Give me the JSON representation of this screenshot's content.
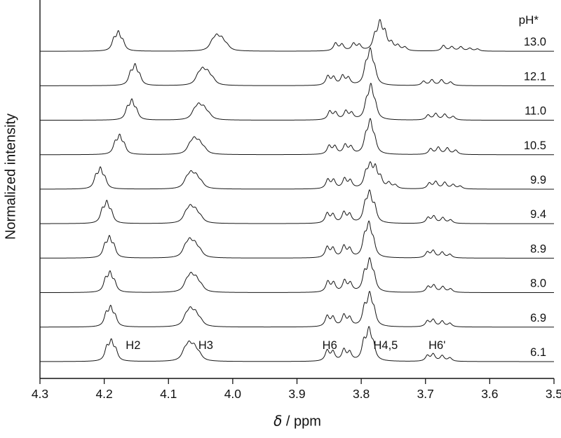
{
  "figure": {
    "background": "#ffffff",
    "line_color": "#141414"
  },
  "axes": {
    "xlabel_symbol": "δ",
    "xlabel_rest": " / ppm"
  },
  "chart_data": {
    "type": "line",
    "title": "",
    "xlabel": "δ / ppm",
    "ylabel": "Normalized intensity",
    "x_range": [
      4.3,
      3.5
    ],
    "x_tick_labels": [
      "4.3",
      "4.2",
      "4.1",
      "4.0",
      "3.9",
      "3.8",
      "3.7",
      "3.6",
      "3.5"
    ],
    "grid": false,
    "legend_title": "pH*",
    "peak_format": "[ppm_center, relative_height, optional_width_ppm]",
    "series": [
      {
        "name": "pH* 13.0",
        "label": "13.0",
        "peaks": [
          [
            4.185,
            15
          ],
          [
            4.178,
            24
          ],
          [
            4.171,
            12
          ],
          [
            4.032,
            10,
            0.005
          ],
          [
            4.025,
            17,
            0.005
          ],
          [
            4.017,
            14,
            0.005
          ],
          [
            4.009,
            6,
            0.005
          ],
          [
            3.84,
            11
          ],
          [
            3.83,
            9
          ],
          [
            3.812,
            10
          ],
          [
            3.803,
            8
          ],
          [
            3.779,
            18
          ],
          [
            3.771,
            38,
            0.0042
          ],
          [
            3.763,
            22
          ],
          [
            3.753,
            10
          ],
          [
            3.743,
            7
          ],
          [
            3.732,
            5
          ],
          [
            3.672,
            8
          ],
          [
            3.659,
            6
          ],
          [
            3.645,
            6
          ],
          [
            3.631,
            4
          ],
          [
            3.619,
            3
          ]
        ]
      },
      {
        "name": "pH* 12.1",
        "label": "12.1",
        "peaks": [
          [
            4.159,
            16
          ],
          [
            4.152,
            26
          ],
          [
            4.145,
            12
          ],
          [
            4.054,
            11,
            0.005
          ],
          [
            4.047,
            18,
            0.005
          ],
          [
            4.039,
            15,
            0.005
          ],
          [
            4.031,
            7,
            0.005
          ],
          [
            3.852,
            13
          ],
          [
            3.843,
            11
          ],
          [
            3.829,
            13
          ],
          [
            3.82,
            10
          ],
          [
            3.793,
            22
          ],
          [
            3.786,
            46,
            0.0042
          ],
          [
            3.779,
            17
          ],
          [
            3.703,
            6
          ],
          [
            3.69,
            8
          ],
          [
            3.675,
            8
          ],
          [
            3.661,
            5
          ]
        ]
      },
      {
        "name": "pH* 11.0",
        "label": "11.0",
        "peaks": [
          [
            4.164,
            15
          ],
          [
            4.157,
            25
          ],
          [
            4.15,
            12
          ],
          [
            4.06,
            10,
            0.005
          ],
          [
            4.053,
            17,
            0.005
          ],
          [
            4.045,
            14,
            0.005
          ],
          [
            4.037,
            6,
            0.005
          ],
          [
            3.849,
            12
          ],
          [
            3.84,
            10
          ],
          [
            3.824,
            12
          ],
          [
            3.815,
            9
          ],
          [
            3.792,
            20
          ],
          [
            3.785,
            45,
            0.0042
          ],
          [
            3.778,
            16
          ],
          [
            3.696,
            7
          ],
          [
            3.684,
            9
          ],
          [
            3.67,
            8
          ],
          [
            3.657,
            5
          ]
        ]
      },
      {
        "name": "pH* 10.5",
        "label": "10.5",
        "peaks": [
          [
            4.183,
            15
          ],
          [
            4.176,
            24
          ],
          [
            4.169,
            12
          ],
          [
            4.067,
            10,
            0.005
          ],
          [
            4.06,
            18,
            0.005
          ],
          [
            4.052,
            14,
            0.005
          ],
          [
            4.044,
            6,
            0.005
          ],
          [
            3.85,
            12
          ],
          [
            3.841,
            11
          ],
          [
            3.825,
            13
          ],
          [
            3.816,
            10
          ],
          [
            3.793,
            20
          ],
          [
            3.786,
            44,
            0.0042
          ],
          [
            3.779,
            16
          ],
          [
            3.692,
            8
          ],
          [
            3.68,
            10
          ],
          [
            3.666,
            9
          ],
          [
            3.653,
            6
          ]
        ]
      },
      {
        "name": "pH* 9.9",
        "label": "9.9",
        "peaks": [
          [
            4.213,
            16
          ],
          [
            4.206,
            26
          ],
          [
            4.199,
            13
          ],
          [
            4.072,
            11,
            0.005
          ],
          [
            4.065,
            18,
            0.005
          ],
          [
            4.057,
            15,
            0.005
          ],
          [
            4.049,
            7,
            0.005
          ],
          [
            3.852,
            13
          ],
          [
            3.843,
            12
          ],
          [
            3.826,
            14
          ],
          [
            3.817,
            11
          ],
          [
            3.793,
            18
          ],
          [
            3.786,
            30,
            0.0042
          ],
          [
            3.778,
            26
          ],
          [
            3.77,
            14
          ],
          [
            3.757,
            8
          ],
          [
            3.747,
            5
          ],
          [
            3.694,
            8
          ],
          [
            3.684,
            10
          ],
          [
            3.67,
            9
          ],
          [
            3.657,
            6
          ],
          [
            3.646,
            4
          ]
        ]
      },
      {
        "name": "pH* 9.4",
        "label": "9.4",
        "peaks": [
          [
            4.203,
            17
          ],
          [
            4.196,
            27
          ],
          [
            4.189,
            14
          ],
          [
            4.073,
            11,
            0.005
          ],
          [
            4.066,
            19,
            0.005
          ],
          [
            4.058,
            15,
            0.005
          ],
          [
            4.05,
            7,
            0.005
          ],
          [
            3.853,
            14
          ],
          [
            3.844,
            12
          ],
          [
            3.827,
            15
          ],
          [
            3.818,
            12
          ],
          [
            3.794,
            22
          ],
          [
            3.787,
            40,
            0.0042
          ],
          [
            3.779,
            20
          ],
          [
            3.696,
            8
          ],
          [
            3.687,
            10
          ],
          [
            3.673,
            8
          ],
          [
            3.661,
            5
          ]
        ]
      },
      {
        "name": "pH* 8.9",
        "label": "8.9",
        "peaks": [
          [
            4.199,
            16
          ],
          [
            4.192,
            26
          ],
          [
            4.185,
            15
          ],
          [
            4.074,
            12,
            0.005
          ],
          [
            4.067,
            20,
            0.005
          ],
          [
            4.059,
            16,
            0.005
          ],
          [
            4.051,
            8,
            0.005
          ],
          [
            3.853,
            15
          ],
          [
            3.844,
            13
          ],
          [
            3.827,
            16
          ],
          [
            3.818,
            12
          ],
          [
            3.795,
            24
          ],
          [
            3.788,
            44,
            0.0042
          ],
          [
            3.781,
            18
          ],
          [
            3.697,
            8
          ],
          [
            3.688,
            10
          ],
          [
            3.674,
            8
          ],
          [
            3.662,
            5
          ]
        ]
      },
      {
        "name": "pH* 8.0",
        "label": "8.0",
        "peaks": [
          [
            4.198,
            17
          ],
          [
            4.191,
            25
          ],
          [
            4.184,
            13
          ],
          [
            4.072,
            12,
            0.005
          ],
          [
            4.065,
            20,
            0.005
          ],
          [
            4.057,
            16,
            0.005
          ],
          [
            4.049,
            7,
            0.005
          ],
          [
            3.852,
            15
          ],
          [
            3.843,
            13
          ],
          [
            3.826,
            16
          ],
          [
            3.817,
            12
          ],
          [
            3.795,
            23
          ],
          [
            3.787,
            42,
            0.0042
          ],
          [
            3.78,
            18
          ],
          [
            3.696,
            8
          ],
          [
            3.687,
            10
          ],
          [
            3.673,
            8
          ],
          [
            3.661,
            5
          ]
        ]
      },
      {
        "name": "pH* 6.9",
        "label": "6.9",
        "peaks": [
          [
            4.197,
            17
          ],
          [
            4.19,
            25
          ],
          [
            4.183,
            13
          ],
          [
            4.073,
            12,
            0.005
          ],
          [
            4.066,
            20,
            0.005
          ],
          [
            4.058,
            16,
            0.005
          ],
          [
            4.05,
            7,
            0.005
          ],
          [
            3.853,
            15
          ],
          [
            3.844,
            13
          ],
          [
            3.827,
            16
          ],
          [
            3.818,
            12
          ],
          [
            3.795,
            24
          ],
          [
            3.787,
            43,
            0.0042
          ],
          [
            3.78,
            18
          ],
          [
            3.697,
            8
          ],
          [
            3.688,
            10
          ],
          [
            3.674,
            8
          ],
          [
            3.662,
            5
          ]
        ]
      },
      {
        "name": "pH* 6.1",
        "label": "6.1",
        "peaks": [
          [
            4.196,
            18
          ],
          [
            4.189,
            26
          ],
          [
            4.182,
            14
          ],
          [
            4.075,
            12,
            0.005
          ],
          [
            4.068,
            20,
            0.005
          ],
          [
            4.06,
            17,
            0.005
          ],
          [
            4.052,
            8,
            0.005
          ],
          [
            3.853,
            15
          ],
          [
            3.844,
            13
          ],
          [
            3.827,
            16
          ],
          [
            3.818,
            12
          ],
          [
            3.796,
            24
          ],
          [
            3.788,
            42,
            0.0042
          ],
          [
            3.781,
            18
          ],
          [
            3.697,
            8
          ],
          [
            3.688,
            10
          ],
          [
            3.674,
            8
          ],
          [
            3.662,
            5
          ]
        ]
      }
    ],
    "peak_annotations": [
      {
        "text": "H2",
        "ppm": 4.155
      },
      {
        "text": "H3",
        "ppm": 4.042
      },
      {
        "text": "H6",
        "ppm": 3.849
      },
      {
        "text": "H4,5",
        "ppm": 3.762
      },
      {
        "text": "H6'",
        "ppm": 3.682
      }
    ]
  }
}
